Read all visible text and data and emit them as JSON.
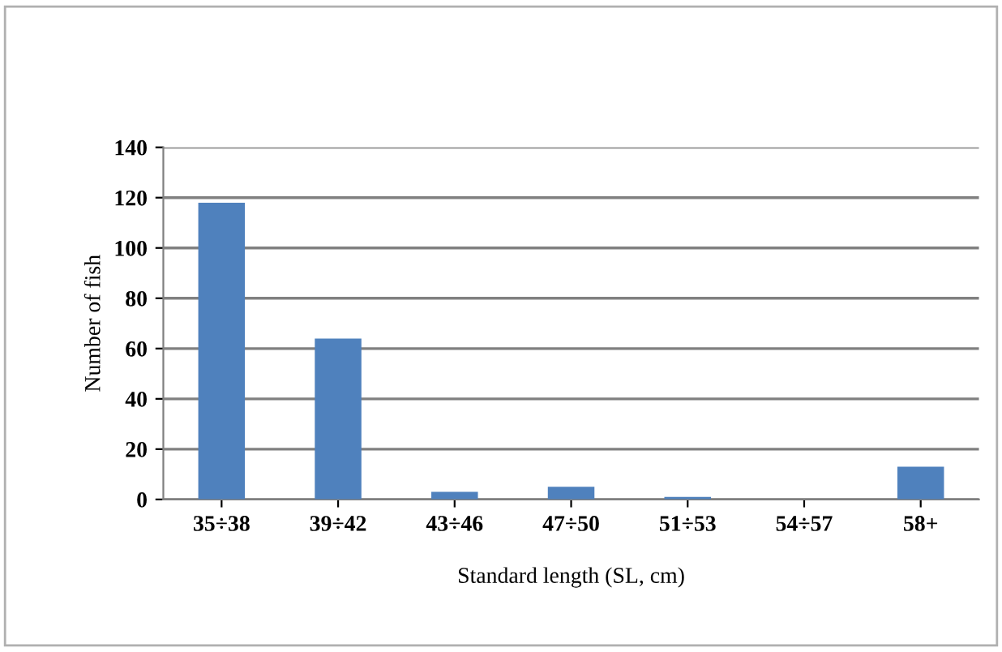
{
  "chart_data": {
    "type": "bar",
    "xlabel": "Standard length (SL, cm)",
    "ylabel": "Number of fish",
    "categories": [
      "35÷38",
      "39÷42",
      "43÷46",
      "47÷50",
      "51÷53",
      "54÷57",
      "58+"
    ],
    "values": [
      118,
      64,
      3,
      5,
      1,
      0,
      13
    ],
    "color": "#4f81bd",
    "ylim": [
      0,
      140
    ],
    "yticks": [
      0,
      20,
      40,
      60,
      80,
      100,
      120,
      140
    ],
    "grid": "y"
  }
}
